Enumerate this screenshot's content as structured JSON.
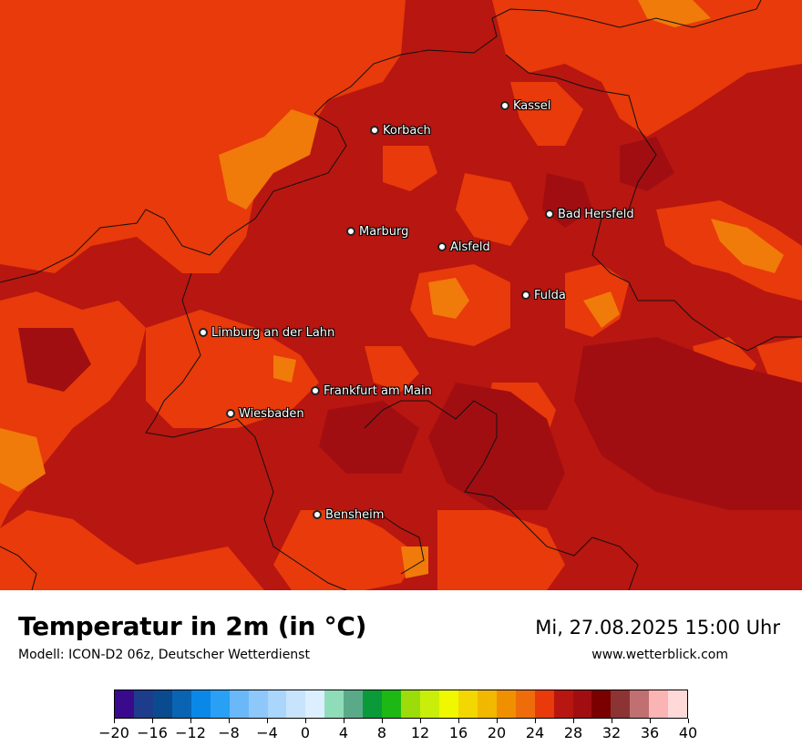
{
  "title": "Temperatur in 2m (in °C)",
  "model": "Modell: ICON-D2 06z, Deutscher Wetterdienst",
  "datetime": "Mi, 27.08.2025 15:00 Uhr",
  "website": "www.wetterblick.com",
  "cities": [
    {
      "name": "Kassel"
    },
    {
      "name": "Korbach"
    },
    {
      "name": "Bad Hersfeld"
    },
    {
      "name": "Marburg"
    },
    {
      "name": "Alsfeld"
    },
    {
      "name": "Fulda"
    },
    {
      "name": "Limburg an der Lahn"
    },
    {
      "name": "Frankfurt am Main"
    },
    {
      "name": "Wiesbaden"
    },
    {
      "name": "Bensheim"
    }
  ],
  "legend": {
    "unit": "°C",
    "min": -20,
    "max": 40,
    "step": 2,
    "colors": [
      "#3a0a8c",
      "#1e3c8c",
      "#0a4a8e",
      "#0a64b4",
      "#0a88e8",
      "#2aa0f5",
      "#6ab8f8",
      "#8ec8fa",
      "#aad6fb",
      "#c8e4fc",
      "#dcefff",
      "#8fdcb8",
      "#5aaa8a",
      "#0a9a3a",
      "#1eb814",
      "#9cdc0a",
      "#c8ee0a",
      "#f0f800",
      "#f2d800",
      "#f2b800",
      "#f09000",
      "#ee6c0a",
      "#e83a0a",
      "#b81610",
      "#a00e12",
      "#7a0000",
      "#8c3434",
      "#c07070",
      "#fab4b4",
      "#ffd8d8"
    ],
    "tick_labels": [
      "−20",
      "−16",
      "−12",
      "−8",
      "−4",
      "0",
      "4",
      "8",
      "12",
      "16",
      "20",
      "24",
      "28",
      "32",
      "36",
      "40"
    ]
  }
}
